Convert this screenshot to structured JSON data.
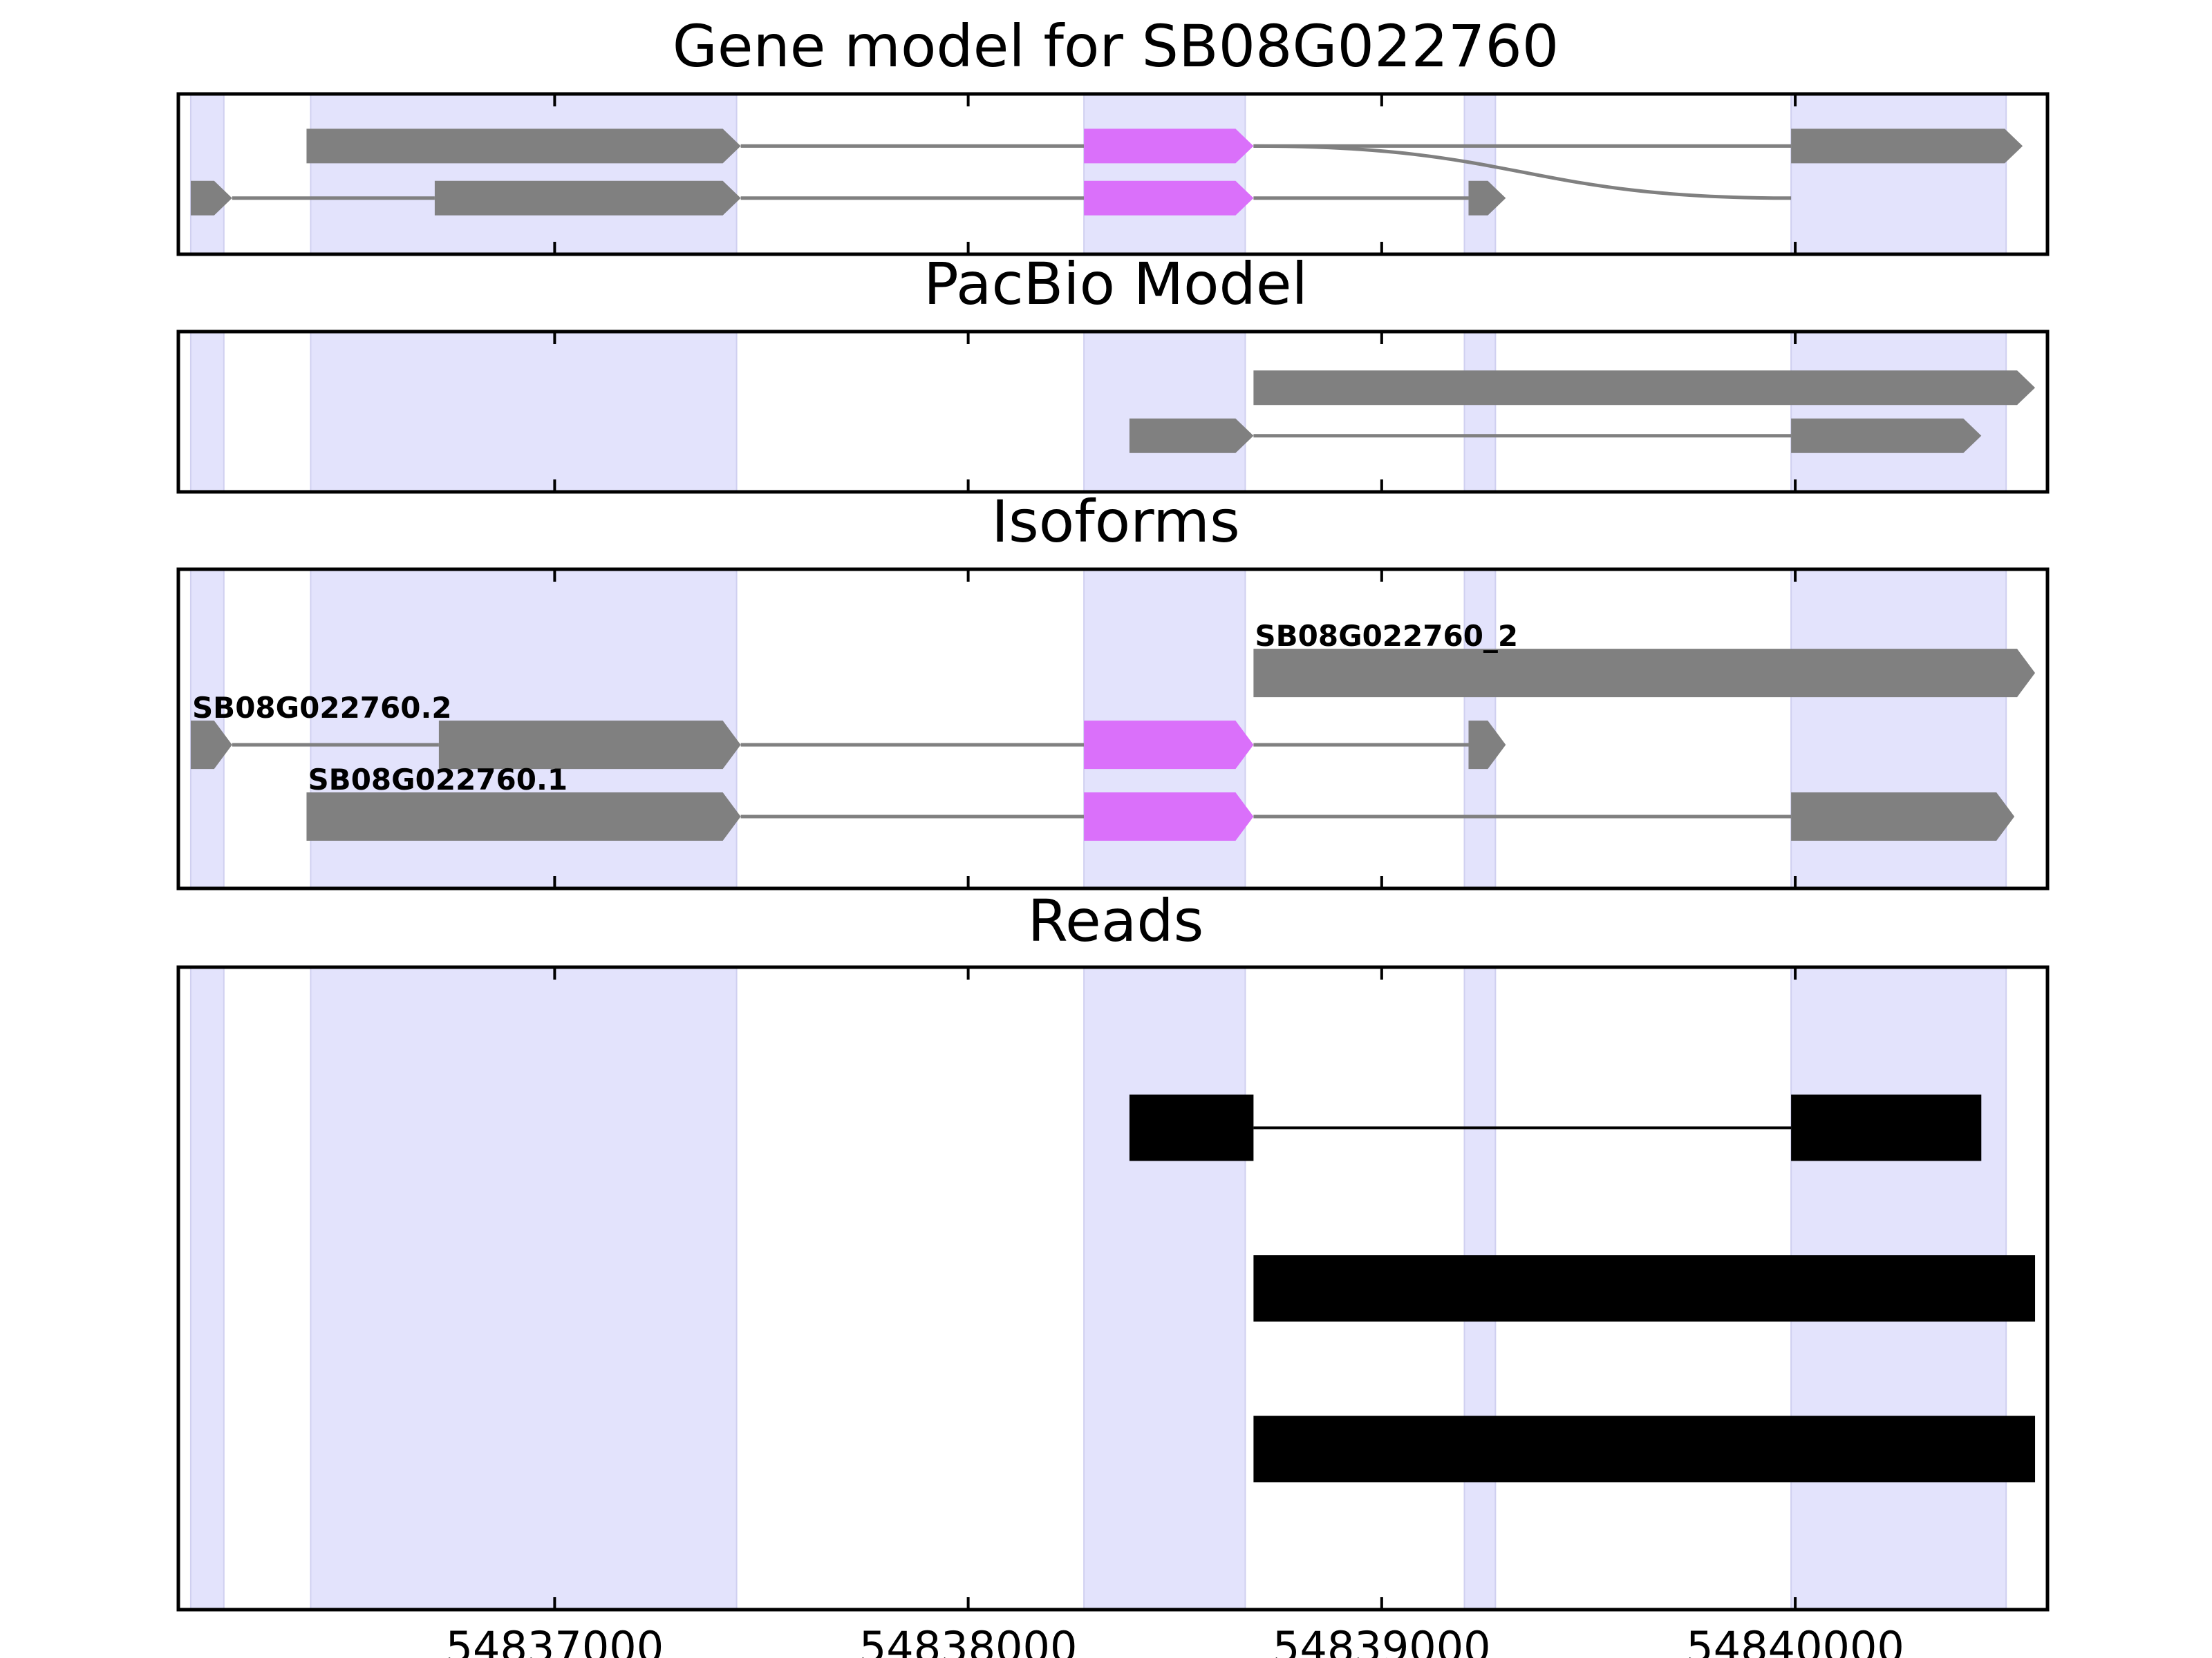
{
  "colors": {
    "exon": "#808080",
    "highlight_exon": "#da70fa",
    "intron": "#808080",
    "read": "#000000",
    "exon_band": "#e3e3fc",
    "axes": "#000000"
  },
  "chart_data": [
    {
      "type": "gene-track",
      "title": "Gene model for SB08G022760",
      "xlim": [
        54836090,
        54840610
      ],
      "ylim": [
        0,
        2
      ],
      "transcripts": [
        {
          "label": "",
          "y": 1.35,
          "strand": "+",
          "style": "arrow",
          "exons": [
            [
              54836400,
              54837450
            ],
            [
              54838280,
              54838690
            ],
            [
              54839990,
              54840550
            ]
          ],
          "highlight": [
            1
          ]
        },
        {
          "label": "",
          "y": 0.7,
          "strand": "+",
          "style": "arrow",
          "exons": [
            [
              54836120,
              54836220
            ],
            [
              54836710,
              54837450
            ],
            [
              54838280,
              54838690
            ],
            [
              54839210,
              54839300
            ]
          ],
          "highlight": [
            2
          ]
        }
      ]
    },
    {
      "type": "gene-track",
      "title": "PacBio Model",
      "xlim": [
        54836090,
        54840610
      ],
      "ylim": [
        0,
        2
      ],
      "transcripts": [
        {
          "label": "",
          "y": 1.3,
          "strand": "+",
          "style": "arrow",
          "exons": [
            [
              54838690,
              54840580
            ]
          ],
          "highlight": []
        },
        {
          "label": "",
          "y": 0.7,
          "strand": "+",
          "style": "arrow",
          "exons": [
            [
              54838390,
              54838690
            ],
            [
              54839990,
              54840450
            ]
          ],
          "highlight": []
        }
      ]
    },
    {
      "type": "gene-track",
      "title": "Isoforms",
      "xlim": [
        54836090,
        54840610
      ],
      "ylim": [
        0,
        4
      ],
      "transcripts": [
        {
          "label": "SB08G022760_2",
          "y": 2.7,
          "strand": "+",
          "style": "arrow",
          "exons": [
            [
              54838690,
              54840580
            ]
          ],
          "highlight": []
        },
        {
          "label": "SB08G022760.2",
          "y": 1.8,
          "strand": "+",
          "style": "arrow",
          "exons": [
            [
              54836120,
              54836220
            ],
            [
              54836720,
              54837450
            ],
            [
              54838280,
              54838690
            ],
            [
              54839210,
              54839300
            ]
          ],
          "highlight": [
            2
          ]
        },
        {
          "label": "SB08G022760.1",
          "y": 0.9,
          "strand": "+",
          "style": "arrow",
          "exons": [
            [
              54836400,
              54837450
            ],
            [
              54838280,
              54838690
            ],
            [
              54839990,
              54840530
            ]
          ],
          "highlight": [
            1
          ]
        }
      ]
    },
    {
      "type": "gene-track",
      "title": "Reads",
      "xlim": [
        54836090,
        54840610
      ],
      "ylim": [
        0,
        4
      ],
      "xticks": [
        54837000,
        54838000,
        54839000,
        54840000
      ],
      "xticklabels": [
        "54837000",
        "54838000",
        "54839000",
        "54840000"
      ],
      "transcripts": [
        {
          "label": "",
          "y": 3.0,
          "strand": "",
          "style": "block",
          "exons": [
            [
              54838390,
              54838690
            ],
            [
              54839990,
              54840450
            ]
          ],
          "highlight": []
        },
        {
          "label": "",
          "y": 2.0,
          "strand": "",
          "style": "block",
          "exons": [
            [
              54838690,
              54840580
            ]
          ],
          "highlight": []
        },
        {
          "label": "",
          "y": 1.0,
          "strand": "",
          "style": "block",
          "exons": [
            [
              54838690,
              54840580
            ]
          ],
          "highlight": []
        }
      ]
    }
  ],
  "exon_bands": [
    [
      54836120,
      54836200
    ],
    [
      54836410,
      54837440
    ],
    [
      54838280,
      54838670
    ],
    [
      54839200,
      54839275
    ],
    [
      54839990,
      54840510
    ]
  ],
  "connector": {
    "from": [
      54838690,
      1.35
    ],
    "to": [
      54839990,
      0.7
    ]
  }
}
